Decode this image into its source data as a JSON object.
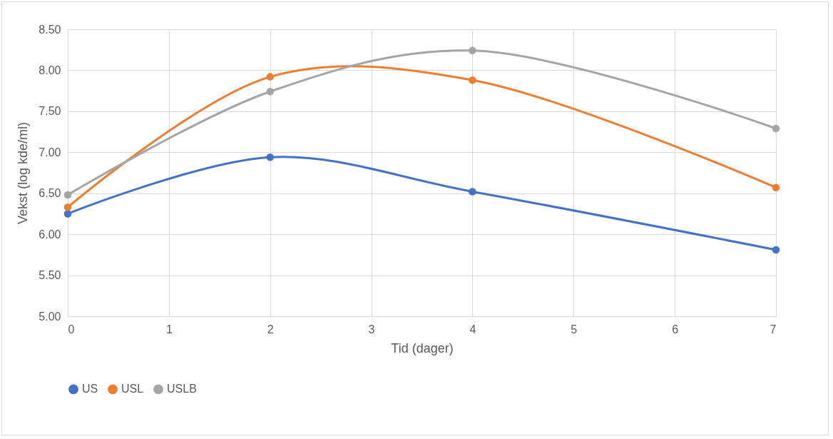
{
  "chart_data": {
    "type": "line",
    "xlabel": "Tid (dager)",
    "ylabel": "Vekst (log kde/ml)",
    "x": [
      0,
      2,
      4,
      7
    ],
    "series": [
      {
        "name": "US",
        "color": "#4472c4",
        "values": [
          6.25,
          6.94,
          6.52,
          5.81
        ]
      },
      {
        "name": "USL",
        "color": "#ed7d31",
        "values": [
          6.33,
          7.92,
          7.88,
          6.57
        ]
      },
      {
        "name": "USLB",
        "color": "#a5a5a5",
        "values": [
          6.48,
          7.74,
          8.24,
          7.29
        ]
      }
    ],
    "xlim": [
      0,
      7
    ],
    "xticks": [
      0,
      1,
      2,
      3,
      4,
      5,
      6,
      7
    ],
    "ylim": [
      5,
      8.5
    ],
    "yticks": [
      {
        "value": 5,
        "label": "5.00"
      },
      {
        "value": 5.5,
        "label": "5.50"
      },
      {
        "value": 6,
        "label": "6.00"
      },
      {
        "value": 6.5,
        "label": "6.50"
      },
      {
        "value": 7,
        "label": "7.00"
      },
      {
        "value": 7.5,
        "label": "7.50"
      },
      {
        "value": 8,
        "label": "8.00"
      },
      {
        "value": 8.5,
        "label": "8.50"
      }
    ],
    "grid": true,
    "legend": "bottom",
    "marker": "circle",
    "line_style": "solid"
  }
}
